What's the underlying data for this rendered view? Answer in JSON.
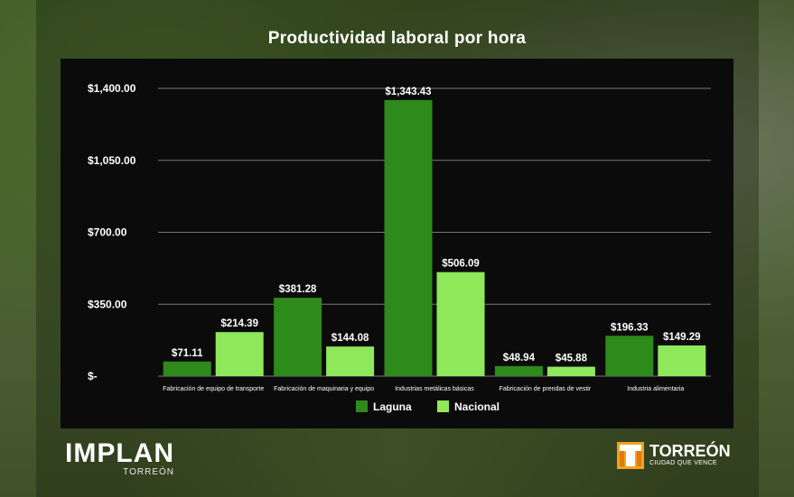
{
  "chart_data": {
    "type": "bar",
    "title": "Productividad laboral por hora",
    "categories": [
      "Fabricación de equipo de transporte",
      "Fabricación de maquinaria y equipo",
      "Industrias metálicas básicas",
      "Fabricación de prendas de vestir",
      "Industria alimentaria"
    ],
    "series": [
      {
        "name": "Laguna",
        "values": [
          71.11,
          381.28,
          1343.43,
          48.94,
          196.33
        ],
        "labels": [
          "$71.11",
          "$381.28",
          "$1,343.43",
          "$48.94",
          "$196.33"
        ],
        "color": "#2e8a1a"
      },
      {
        "name": "Nacional",
        "values": [
          214.39,
          144.08,
          506.09,
          45.88,
          149.29
        ],
        "labels": [
          "$214.39",
          "$144.08",
          "$506.09",
          "$45.88",
          "$149.29"
        ],
        "color": "#8ee85a"
      }
    ],
    "ylim": [
      0,
      1400
    ],
    "yticks": [
      0,
      350,
      700,
      1050,
      1400
    ],
    "ytick_labels": [
      "$-",
      "$350.00",
      "$700.00",
      "$1,050.00",
      "$1,400.00"
    ],
    "grid": true,
    "legend_position": "bottom"
  },
  "branding": {
    "left_logo": "IMPLAN",
    "left_logo_sub": "TORREÓN",
    "right_logo": "TORREÓN",
    "right_logo_sub": "CIUDAD QUE VENCE"
  }
}
